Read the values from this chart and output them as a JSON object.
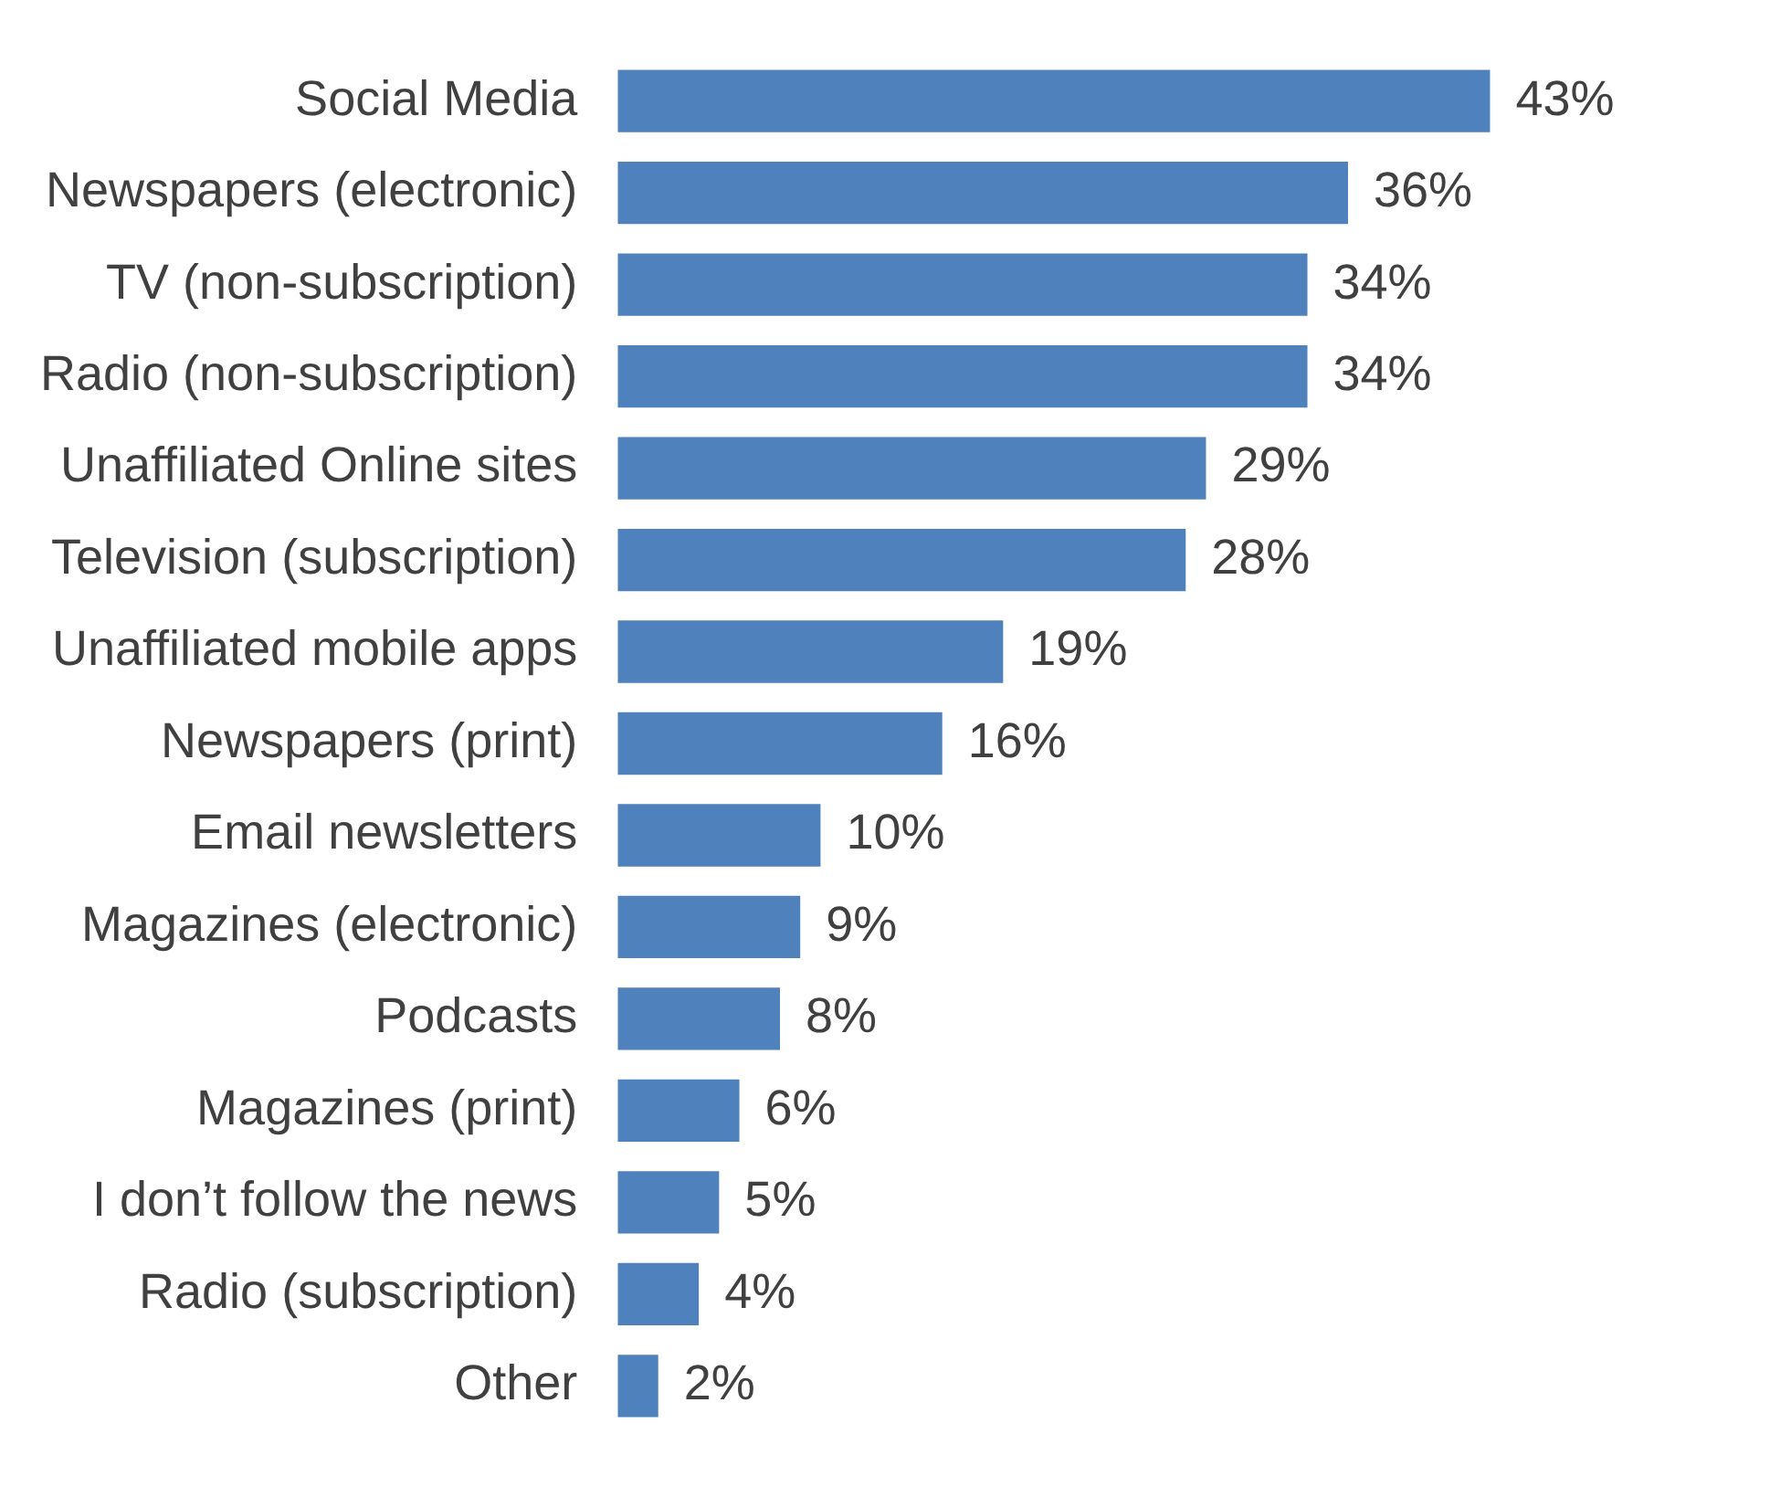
{
  "chart_data": {
    "type": "bar",
    "orientation": "horizontal",
    "categories": [
      "Social Media",
      "Newspapers (electronic)",
      "TV (non-subscription)",
      "Radio (non-subscription)",
      "Unaffiliated Online sites",
      "Television (subscription)",
      "Unaffiliated mobile apps",
      "Newspapers (print)",
      "Email newsletters",
      "Magazines (electronic)",
      "Podcasts",
      "Magazines (print)",
      "I don’t follow the news",
      "Radio (subscription)",
      "Other"
    ],
    "values": [
      43,
      36,
      34,
      34,
      29,
      28,
      19,
      16,
      10,
      9,
      8,
      6,
      5,
      4,
      2
    ],
    "value_labels": [
      "43%",
      "36%",
      "34%",
      "34%",
      "29%",
      "28%",
      "19%",
      "16%",
      "10%",
      "9%",
      "8%",
      "6%",
      "5%",
      "4%",
      "2%"
    ],
    "color": "#4f81bd"
  }
}
